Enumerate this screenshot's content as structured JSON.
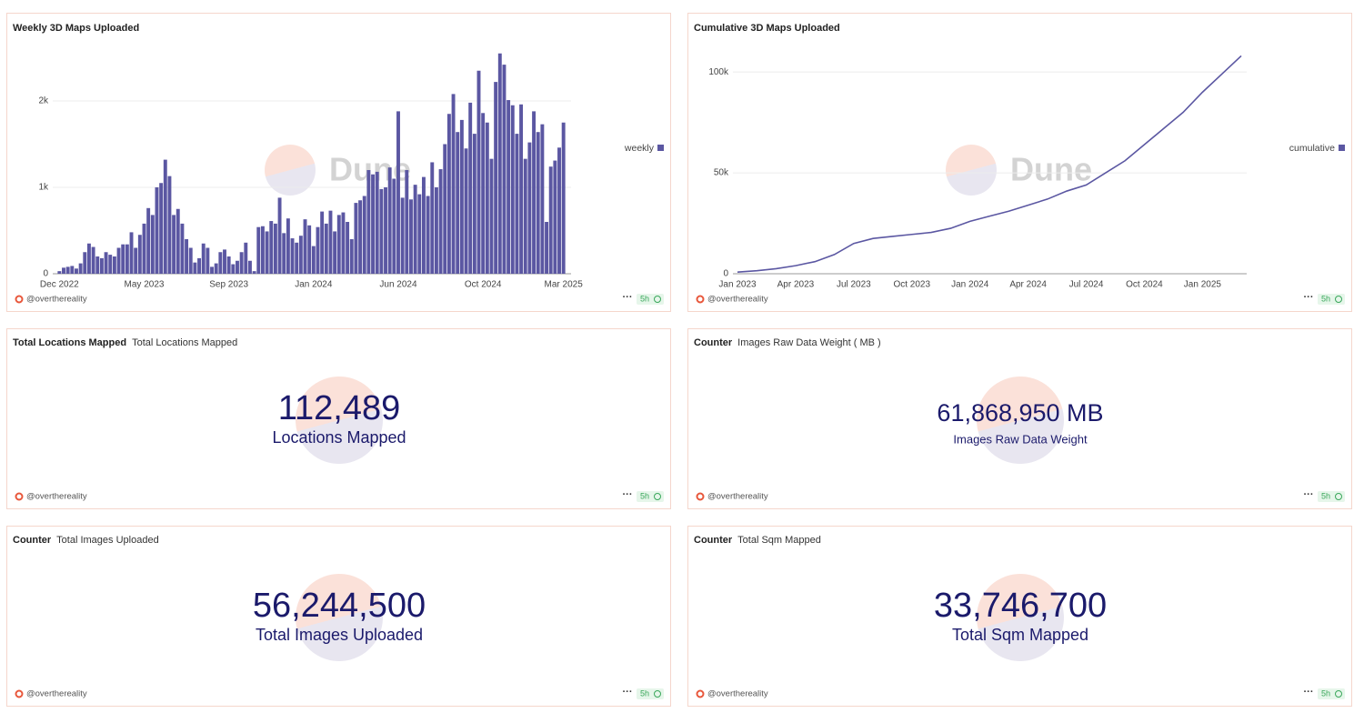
{
  "chart_data": [
    {
      "type": "bar",
      "title": "Weekly 3D Maps Uploaded",
      "categories": [
        "Dec 2022",
        null,
        null,
        null,
        null,
        null,
        null,
        null,
        null,
        null,
        null,
        null,
        null,
        null,
        null,
        null,
        null,
        null,
        null,
        null,
        "May 2023",
        null,
        null,
        null,
        null,
        null,
        null,
        null,
        null,
        null,
        null,
        null,
        null,
        null,
        null,
        null,
        null,
        null,
        null,
        null,
        "Sep 2023",
        null,
        null,
        null,
        null,
        null,
        null,
        null,
        null,
        null,
        null,
        null,
        null,
        null,
        null,
        null,
        null,
        null,
        null,
        null,
        "Jan 2024",
        null,
        null,
        null,
        null,
        null,
        null,
        null,
        null,
        null,
        null,
        null,
        null,
        null,
        null,
        null,
        null,
        null,
        null,
        null,
        "Jun 2024",
        null,
        null,
        null,
        null,
        null,
        null,
        null,
        null,
        null,
        null,
        null,
        null,
        null,
        null,
        null,
        null,
        null,
        null,
        null,
        "Oct 2024",
        null,
        null,
        null,
        null,
        null,
        null,
        null,
        null,
        null,
        null,
        null,
        null,
        null,
        null,
        null,
        null,
        null,
        null,
        "Mar 2025"
      ],
      "series": [
        {
          "name": "weekly",
          "color": "#5b57a2",
          "values": [
            30,
            70,
            80,
            90,
            60,
            120,
            250,
            350,
            310,
            200,
            180,
            250,
            220,
            200,
            300,
            340,
            340,
            480,
            300,
            450,
            580,
            760,
            680,
            1000,
            1050,
            1320,
            1130,
            680,
            750,
            580,
            400,
            300,
            130,
            180,
            350,
            300,
            80,
            120,
            250,
            280,
            200,
            110,
            150,
            250,
            360,
            150,
            30,
            540,
            550,
            490,
            610,
            580,
            880,
            470,
            640,
            410,
            360,
            440,
            630,
            560,
            320,
            540,
            720,
            580,
            730,
            490,
            680,
            710,
            600,
            400,
            820,
            850,
            900,
            1200,
            1150,
            1180,
            980,
            1000,
            1230,
            1100,
            1880,
            880,
            1200,
            860,
            1030,
            920,
            1120,
            900,
            1290,
            1000,
            1210,
            1500,
            1850,
            2080,
            1640,
            1780,
            1450,
            1980,
            1620,
            2350,
            1860,
            1750,
            1330,
            2220,
            2550,
            2420,
            2010,
            1950,
            1620,
            1960,
            1330,
            1520,
            1880,
            1640,
            1730,
            600,
            1240,
            1310,
            1460,
            1750
          ]
        }
      ],
      "ylim": [
        0,
        2600
      ],
      "yticks": [
        0,
        {
          "value": 1000,
          "label": "1k"
        },
        {
          "value": 2000,
          "label": "2k"
        }
      ],
      "grid": true,
      "legend": "right"
    },
    {
      "type": "line",
      "title": "Cumulative 3D Maps Uploaded",
      "categories": [
        "Jan 2023",
        null,
        null,
        "Apr 2023",
        null,
        null,
        "Jul 2023",
        null,
        null,
        "Oct 2023",
        null,
        null,
        "Jan 2024",
        null,
        null,
        "Apr 2024",
        null,
        null,
        "Jul 2024",
        null,
        null,
        "Oct 2024",
        null,
        null,
        "Jan 2025",
        null,
        null
      ],
      "series": [
        {
          "name": "cumulative",
          "color": "#5b57a2",
          "values": [
            800,
            1500,
            2500,
            4000,
            6000,
            9500,
            15000,
            17500,
            18500,
            19500,
            20500,
            22500,
            26000,
            28500,
            31000,
            34000,
            37000,
            41000,
            44000,
            50000,
            56000,
            64000,
            72000,
            80000,
            90000,
            99000,
            108000
          ]
        }
      ],
      "ylim": [
        0,
        110000
      ],
      "yticks": [
        0,
        {
          "value": 50000,
          "label": "50k"
        },
        {
          "value": 100000,
          "label": "100k"
        }
      ],
      "grid": true,
      "legend": "right"
    }
  ],
  "counters": [
    {
      "kind": "Total Locations Mapped",
      "title": "Total Locations Mapped",
      "value": "112,489",
      "label": "Locations Mapped"
    },
    {
      "kind": "Counter",
      "title": "Images Raw Data Weight ( MB )",
      "value": "61,868,950 MB",
      "label": "Images Raw Data Weight"
    },
    {
      "kind": "Counter",
      "title": "Total Images Uploaded",
      "value": "56,244,500",
      "label": "Total Images Uploaded"
    },
    {
      "kind": "Counter",
      "title": "Total Sqm Mapped",
      "value": "33,746,700",
      "label": "Total Sqm Mapped"
    }
  ],
  "footers": [
    {
      "author": "@overthereality",
      "age": "5h"
    },
    {
      "author": "@overthereality",
      "age": "5h"
    },
    {
      "author": "@overthereality",
      "age": "5h"
    },
    {
      "author": "@overthereality",
      "age": "5h"
    },
    {
      "author": "@overthereality",
      "age": "5h"
    },
    {
      "author": "@overthereality",
      "age": "5h"
    }
  ],
  "watermark": "Dune"
}
